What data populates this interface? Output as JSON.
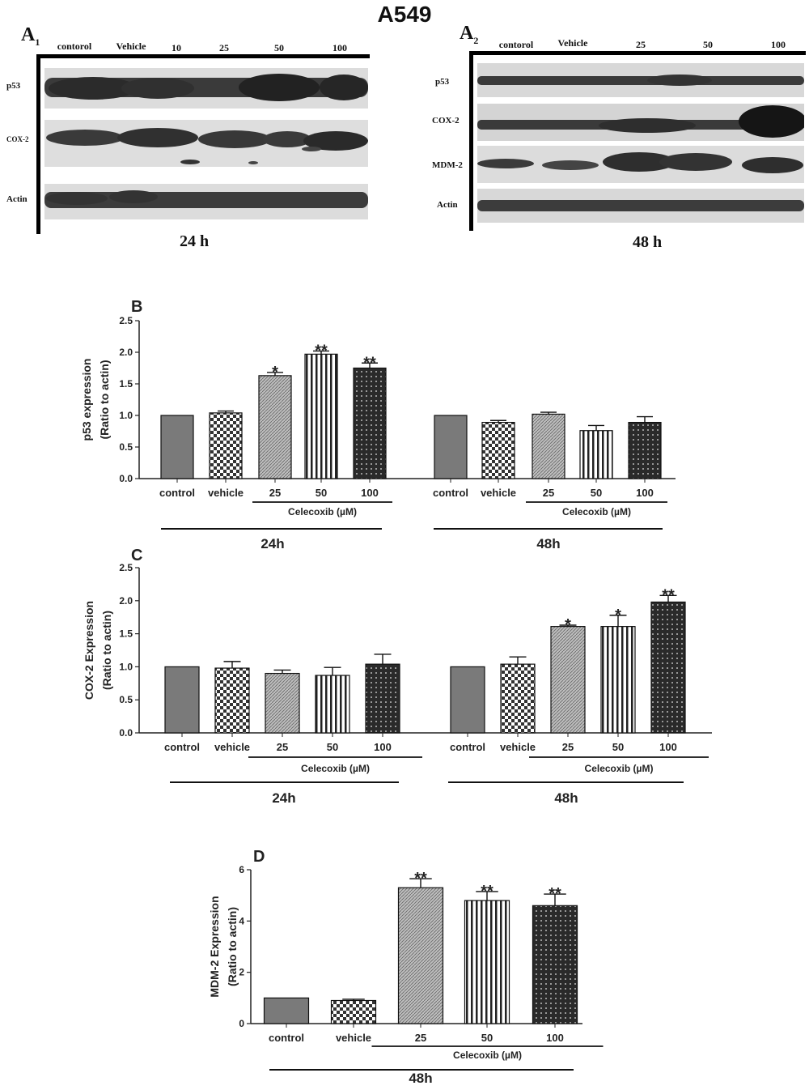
{
  "figure_title": "A549",
  "panel_a1": {
    "label": "A",
    "sub": "1",
    "lanes": [
      "contorol",
      "Vehicle",
      "10",
      "25",
      "50",
      "100"
    ],
    "rows": [
      "p53",
      "COX-2",
      "Actin"
    ],
    "time": "24 h"
  },
  "panel_a2": {
    "label": "A",
    "sub": "2",
    "lanes": [
      "contorol",
      "Vehicle",
      "25",
      "50",
      "100"
    ],
    "rows": [
      "p53",
      "COX-2",
      "MDM-2",
      "Actin"
    ],
    "time": "48 h"
  },
  "chart_data": [
    {
      "panel": "B",
      "type": "bar",
      "ylabel": [
        "p53 expression",
        "(Ratio to actin)"
      ],
      "ylim": [
        0,
        2.5
      ],
      "yticks": [
        "0.0",
        "0.5",
        "1.0",
        "1.5",
        "2.0",
        "2.5"
      ],
      "categories": [
        "control",
        "vehicle",
        "25",
        "50",
        "100",
        "control",
        "vehicle",
        "25",
        "50",
        "100"
      ],
      "values": [
        1.0,
        1.04,
        1.63,
        1.97,
        1.75,
        1.0,
        0.89,
        1.02,
        0.76,
        0.89
      ],
      "errors": [
        0.0,
        0.03,
        0.05,
        0.05,
        0.08,
        0.0,
        0.03,
        0.03,
        0.08,
        0.09
      ],
      "significance": [
        "",
        "",
        "*",
        "**",
        "**",
        "",
        "",
        "",
        "",
        ""
      ],
      "group_labels": [
        "24h",
        "48h"
      ],
      "treatment_label": "Celecoxib (µM)"
    },
    {
      "panel": "C",
      "type": "bar",
      "ylabel": [
        "COX-2 Expression",
        "(Ratio to actin)"
      ],
      "ylim": [
        0,
        2.5
      ],
      "yticks": [
        "0.0",
        "0.5",
        "1.0",
        "1.5",
        "2.0",
        "2.5"
      ],
      "categories": [
        "control",
        "vehicle",
        "25",
        "50",
        "100",
        "control",
        "vehicle",
        "25",
        "50",
        "100"
      ],
      "values": [
        1.0,
        0.98,
        0.9,
        0.87,
        1.04,
        1.0,
        1.04,
        1.61,
        1.61,
        1.98
      ],
      "errors": [
        0.0,
        0.1,
        0.05,
        0.12,
        0.15,
        0.0,
        0.11,
        0.02,
        0.17,
        0.1
      ],
      "significance": [
        "",
        "",
        "",
        "",
        "",
        "",
        "",
        "*",
        "*",
        "**"
      ],
      "group_labels": [
        "24h",
        "48h"
      ],
      "treatment_label": "Celecoxib (µM)"
    },
    {
      "panel": "D",
      "type": "bar",
      "ylabel": [
        "MDM-2 Expression",
        "(Ratio to actin)"
      ],
      "ylim": [
        0,
        6
      ],
      "yticks": [
        "0",
        "2",
        "4",
        "6"
      ],
      "categories": [
        "control",
        "vehicle",
        "25",
        "50",
        "100"
      ],
      "values": [
        1.0,
        0.9,
        5.3,
        4.8,
        4.6
      ],
      "errors": [
        0.0,
        0.05,
        0.35,
        0.35,
        0.45
      ],
      "significance": [
        "",
        "",
        "**",
        "**",
        "**"
      ],
      "group_labels": [
        "48h"
      ],
      "treatment_label": "Celecoxib (µM)"
    }
  ]
}
